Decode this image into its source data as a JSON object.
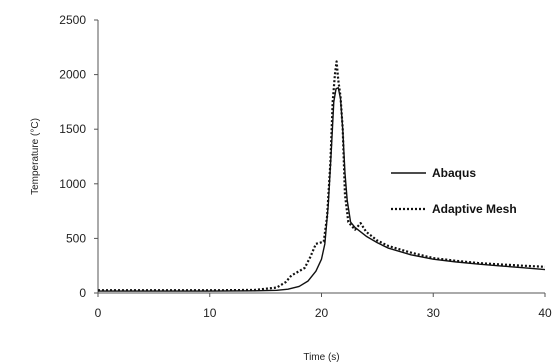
{
  "chart_data": {
    "type": "line",
    "title": "",
    "xlabel": "Time (s)",
    "ylabel": "Temperature (°C)",
    "xlim": [
      0,
      40
    ],
    "ylim": [
      0,
      2500
    ],
    "xticks": [
      0,
      10,
      20,
      30,
      40
    ],
    "yticks": [
      0,
      500,
      1000,
      1500,
      2000,
      2500
    ],
    "grid": false,
    "legend_position": "right",
    "series": [
      {
        "name": "Abaqus",
        "style": "solid",
        "color": "#111111",
        "points": [
          [
            0,
            18
          ],
          [
            5,
            18
          ],
          [
            10,
            18
          ],
          [
            14,
            20
          ],
          [
            16,
            25
          ],
          [
            17,
            35
          ],
          [
            18,
            60
          ],
          [
            18.8,
            110
          ],
          [
            19.5,
            200
          ],
          [
            20,
            310
          ],
          [
            20.3,
            450
          ],
          [
            20.6,
            800
          ],
          [
            20.9,
            1350
          ],
          [
            21.1,
            1750
          ],
          [
            21.3,
            1870
          ],
          [
            21.5,
            1880
          ],
          [
            21.7,
            1780
          ],
          [
            21.9,
            1500
          ],
          [
            22.1,
            1100
          ],
          [
            22.3,
            850
          ],
          [
            22.6,
            650
          ],
          [
            23,
            600
          ],
          [
            24,
            520
          ],
          [
            25,
            460
          ],
          [
            26,
            410
          ],
          [
            28,
            350
          ],
          [
            30,
            310
          ],
          [
            32,
            285
          ],
          [
            34,
            265
          ],
          [
            36,
            248
          ],
          [
            38,
            232
          ],
          [
            40,
            215
          ]
        ]
      },
      {
        "name": "Adaptive Mesh",
        "style": "dotted",
        "color": "#111111",
        "points": [
          [
            0,
            25
          ],
          [
            5,
            25
          ],
          [
            10,
            25
          ],
          [
            14,
            28
          ],
          [
            16,
            50
          ],
          [
            16.8,
            100
          ],
          [
            17.3,
            160
          ],
          [
            18,
            200
          ],
          [
            18.5,
            230
          ],
          [
            19,
            330
          ],
          [
            19.5,
            450
          ],
          [
            20.2,
            470
          ],
          [
            20.5,
            700
          ],
          [
            20.8,
            1200
          ],
          [
            21,
            1750
          ],
          [
            21.2,
            2000
          ],
          [
            21.35,
            2120
          ],
          [
            21.5,
            1950
          ],
          [
            21.7,
            1800
          ],
          [
            21.9,
            1500
          ],
          [
            22.1,
            900
          ],
          [
            22.4,
            650
          ],
          [
            23,
            580
          ],
          [
            23.5,
            640
          ],
          [
            24,
            560
          ],
          [
            25,
            480
          ],
          [
            26,
            430
          ],
          [
            28,
            370
          ],
          [
            30,
            320
          ],
          [
            32,
            295
          ],
          [
            34,
            275
          ],
          [
            36,
            262
          ],
          [
            38,
            250
          ],
          [
            40,
            240
          ]
        ]
      }
    ]
  }
}
